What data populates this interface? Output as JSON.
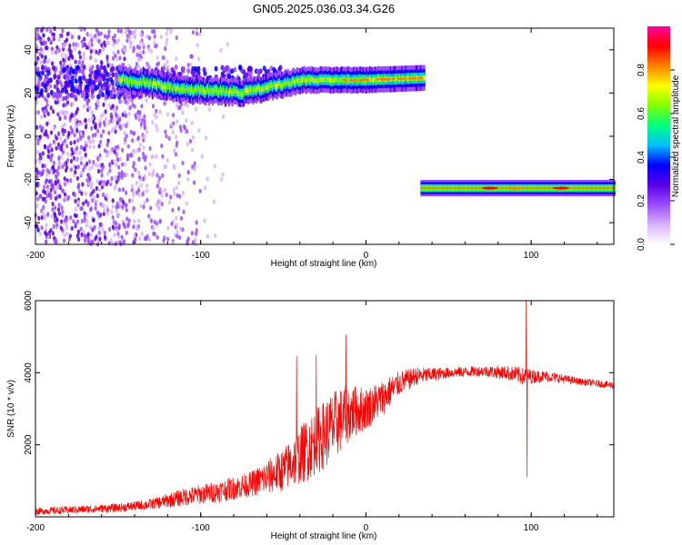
{
  "title": "GN05.2025.036.03.34.G26",
  "chart_data": [
    {
      "type": "heatmap",
      "xlabel": "Height of straight line (km)",
      "ylabel": "Frequency (Hz)",
      "xlim": [
        -200,
        150
      ],
      "ylim": [
        -50,
        50
      ],
      "xticks": [
        -200,
        -100,
        0,
        100
      ],
      "yticks": [
        -40,
        -20,
        0,
        20,
        40
      ],
      "colorbar": {
        "label": "Normalized spectral amplitude",
        "range": [
          0,
          1
        ],
        "ticks": [
          0.0,
          0.2,
          0.4,
          0.6,
          0.8
        ],
        "colors": [
          "#ffffff",
          "#d9b3ff",
          "#9b4dff",
          "#5a00e6",
          "#0000ff",
          "#00bfff",
          "#00ff80",
          "#80ff00",
          "#ffff00",
          "#ff8000",
          "#ff0000",
          "#ff00a0"
        ]
      },
      "features": [
        {
          "name": "upper-band",
          "x": [
            -150,
            35
          ],
          "freq": [
            27,
            22,
            20,
            26,
            26,
            27
          ],
          "amplitude": 0.6
        },
        {
          "name": "lower-band",
          "x": [
            33,
            150
          ],
          "freq": -24,
          "amplitude": 0.7
        },
        {
          "name": "scattered-noise",
          "x": [
            -200,
            -80
          ],
          "freq": [
            -50,
            50
          ],
          "amplitude": 0.15
        }
      ]
    },
    {
      "type": "line",
      "xlabel": "Height of straight line (km)",
      "ylabel": "SNR (10 * v/v)",
      "xlim": [
        -200,
        150
      ],
      "ylim": [
        0,
        6000
      ],
      "xticks": [
        -200,
        -100,
        0,
        100
      ],
      "yticks": [
        2000,
        4000,
        6000
      ],
      "color": "#ff0000",
      "envelope": {
        "x": [
          -200,
          -150,
          -130,
          -110,
          -90,
          -70,
          -50,
          -35,
          -20,
          -10,
          0,
          10,
          20,
          30,
          50,
          70,
          85,
          95,
          100,
          110,
          130,
          150
        ],
        "y": [
          150,
          250,
          350,
          550,
          700,
          900,
          1300,
          1900,
          2500,
          2900,
          3000,
          3300,
          3700,
          3900,
          4000,
          4050,
          4000,
          3900,
          3900,
          3900,
          3750,
          3650
        ],
        "noise": [
          100,
          120,
          150,
          250,
          300,
          350,
          600,
          900,
          1000,
          800,
          600,
          500,
          350,
          250,
          150,
          150,
          200,
          250,
          200,
          150,
          100,
          100
        ]
      },
      "spikes": [
        {
          "x": -42,
          "y": 4450
        },
        {
          "x": -30,
          "y": 4500
        },
        {
          "x": -12,
          "y": 5050
        },
        {
          "x": 97,
          "y": 6000
        },
        {
          "x": 97.5,
          "y": 1100
        }
      ]
    }
  ]
}
